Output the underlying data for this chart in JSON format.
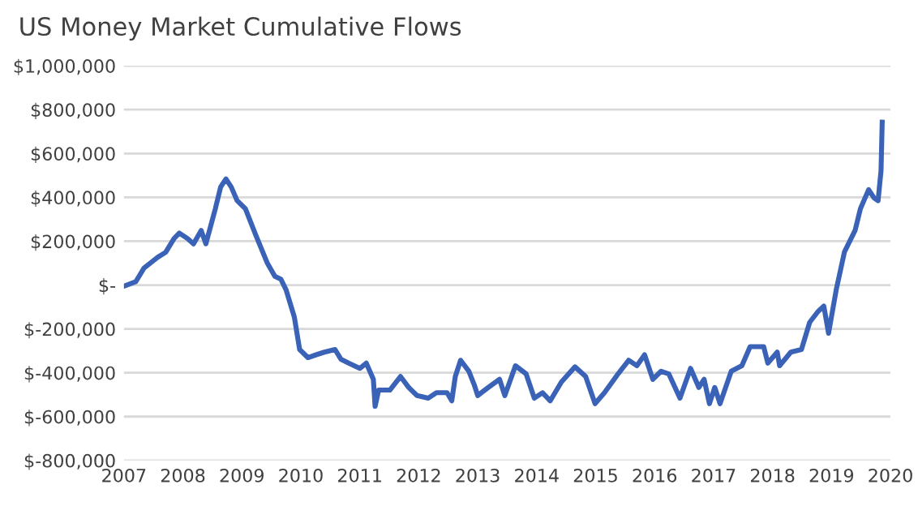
{
  "chart_data": {
    "type": "line",
    "title": "US Money Market Cumulative Flows",
    "x": [
      2007.0,
      2007.2,
      2007.34,
      2007.57,
      2007.71,
      2007.85,
      2007.94,
      2008.08,
      2008.18,
      2008.31,
      2008.39,
      2008.55,
      2008.64,
      2008.73,
      2008.82,
      2008.92,
      2009.06,
      2009.24,
      2009.43,
      2009.56,
      2009.66,
      2009.75,
      2009.89,
      2009.98,
      2010.12,
      2010.26,
      2010.4,
      2010.58,
      2010.68,
      2010.81,
      2011.0,
      2011.11,
      2011.23,
      2011.26,
      2011.32,
      2011.51,
      2011.69,
      2011.83,
      2011.97,
      2012.16,
      2012.3,
      2012.48,
      2012.56,
      2012.62,
      2012.71,
      2012.85,
      2012.94,
      2013.0,
      2013.18,
      2013.37,
      2013.46,
      2013.64,
      2013.82,
      2013.96,
      2014.1,
      2014.23,
      2014.42,
      2014.65,
      2014.83,
      2014.99,
      2015.15,
      2015.38,
      2015.56,
      2015.7,
      2015.83,
      2015.97,
      2016.11,
      2016.24,
      2016.43,
      2016.61,
      2016.75,
      2016.84,
      2016.93,
      2017.02,
      2017.11,
      2017.3,
      2017.48,
      2017.62,
      2017.85,
      2017.92,
      2018.08,
      2018.12,
      2018.31,
      2018.49,
      2018.63,
      2018.77,
      2018.87,
      2018.95,
      2019.08,
      2019.22,
      2019.4,
      2019.49,
      2019.63,
      2019.72,
      2019.79,
      2019.84,
      2019.86
    ],
    "series": [
      {
        "color": "#3a63b8",
        "values": [
          -5000,
          15000,
          77000,
          126000,
          150000,
          212000,
          237000,
          212000,
          188000,
          249000,
          188000,
          348000,
          447000,
          484000,
          447000,
          385000,
          348000,
          225000,
          101000,
          40000,
          27000,
          -22000,
          -146000,
          -294000,
          -331000,
          -318000,
          -306000,
          -294000,
          -338000,
          -356000,
          -380000,
          -356000,
          -430000,
          -553000,
          -479000,
          -479000,
          -417000,
          -467000,
          -504000,
          -516000,
          -491000,
          -491000,
          -528000,
          -417000,
          -343000,
          -393000,
          -454000,
          -504000,
          -467000,
          -430000,
          -504000,
          -368000,
          -405000,
          -516000,
          -491000,
          -528000,
          -442000,
          -373000,
          -417000,
          -541000,
          -491000,
          -405000,
          -343000,
          -368000,
          -318000,
          -430000,
          -393000,
          -405000,
          -516000,
          -380000,
          -467000,
          -430000,
          -541000,
          -467000,
          -541000,
          -393000,
          -368000,
          -281000,
          -281000,
          -356000,
          -306000,
          -368000,
          -306000,
          -294000,
          -170000,
          -121000,
          -96000,
          -220000,
          -22000,
          151000,
          249000,
          348000,
          435000,
          398000,
          385000,
          521000,
          743000
        ]
      }
    ],
    "xlim": [
      2007,
      2020
    ],
    "xticks": [
      2007,
      2008,
      2009,
      2010,
      2011,
      2012,
      2013,
      2014,
      2015,
      2016,
      2017,
      2018,
      2019,
      2020
    ],
    "ylim": [
      -800000,
      1000000
    ],
    "yticks": [
      {
        "value": -800000,
        "label": "$-800,000"
      },
      {
        "value": -600000,
        "label": "$-600,000"
      },
      {
        "value": -400000,
        "label": "$-400,000"
      },
      {
        "value": -200000,
        "label": "$-200,000"
      },
      {
        "value": 0,
        "label": "$-"
      },
      {
        "value": 200000,
        "label": "$200,000"
      },
      {
        "value": 400000,
        "label": "$400,000"
      },
      {
        "value": 600000,
        "label": "$600,000"
      },
      {
        "value": 800000,
        "label": "$800,000"
      },
      {
        "value": 1000000,
        "label": "$1,000,000"
      }
    ],
    "grid": "y",
    "legend": false,
    "marker": "none",
    "line_style": "solid"
  }
}
